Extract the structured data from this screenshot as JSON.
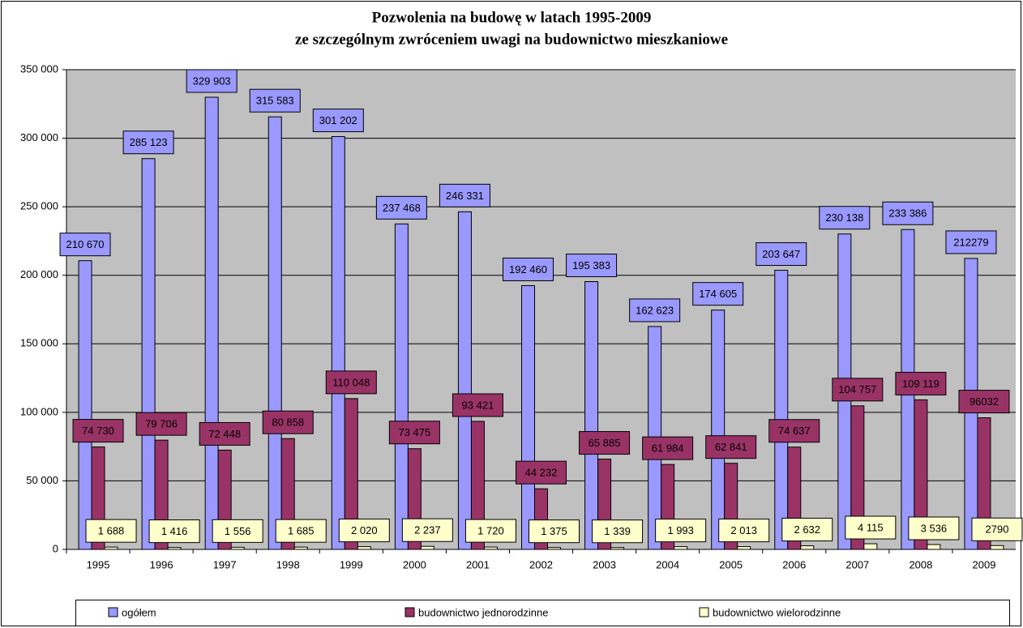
{
  "chart_data": {
    "type": "bar",
    "title": "Pozwolenia na budowę w latach 1995-2009",
    "subtitle": "ze szczególnym zwróceniem uwagi na budownictwo mieszkaniowe",
    "categories": [
      "1995",
      "1996",
      "1997",
      "1998",
      "1999",
      "2000",
      "2001",
      "2002",
      "2003",
      "2004",
      "2005",
      "2006",
      "2007",
      "2008",
      "2009"
    ],
    "series": [
      {
        "name": "ogółem",
        "color": "#9999ff",
        "values": [
          210670,
          285123,
          329903,
          315583,
          301202,
          237468,
          246331,
          192460,
          195383,
          162623,
          174605,
          203647,
          230138,
          233386,
          212279
        ],
        "value_labels": [
          "210 670",
          "285 123",
          "329 903",
          "315 583",
          "301 202",
          "237 468",
          "246 331",
          "192 460",
          "195 383",
          "162 623",
          "174 605",
          "203 647",
          "230 138",
          "233 386",
          "212279"
        ]
      },
      {
        "name": "budownictwo jednorodzinne",
        "color": "#993366",
        "values": [
          74730,
          79706,
          72448,
          80858,
          110048,
          73475,
          93421,
          44232,
          65885,
          61984,
          62841,
          74637,
          104757,
          109119,
          96032
        ],
        "value_labels": [
          "74 730",
          "79 706",
          "72 448",
          "80 858",
          "110 048",
          "73 475",
          "93 421",
          "44 232",
          "65 885",
          "61 984",
          "62 841",
          "74 637",
          "104 757",
          "109 119",
          "96032"
        ]
      },
      {
        "name": "budownictwo wielorodzinne",
        "color": "#ffffcc",
        "values": [
          1688,
          1416,
          1556,
          1685,
          2020,
          2237,
          1720,
          1375,
          1339,
          1993,
          2013,
          2632,
          4115,
          3536,
          2790
        ],
        "value_labels": [
          "1 688",
          "1 416",
          "1 556",
          "1 685",
          "2 020",
          "2 237",
          "1 720",
          "1 375",
          "1 339",
          "1 993",
          "2 013",
          "2 632",
          "4 115",
          "3 536",
          "2790"
        ]
      }
    ],
    "ylim": [
      0,
      350000
    ],
    "yticks": [
      0,
      {
        "value": 50000,
        "label": "50 000"
      },
      {
        "value": 100000,
        "label": "100 000"
      },
      {
        "value": 150000,
        "label": "150 000"
      },
      {
        "value": 200000,
        "label": "200 000"
      },
      {
        "value": 250000,
        "label": "250 000"
      },
      {
        "value": 300000,
        "label": "300 000"
      },
      {
        "value": 350000,
        "label": "350 000"
      }
    ],
    "grid": true,
    "legend": "bottom"
  }
}
